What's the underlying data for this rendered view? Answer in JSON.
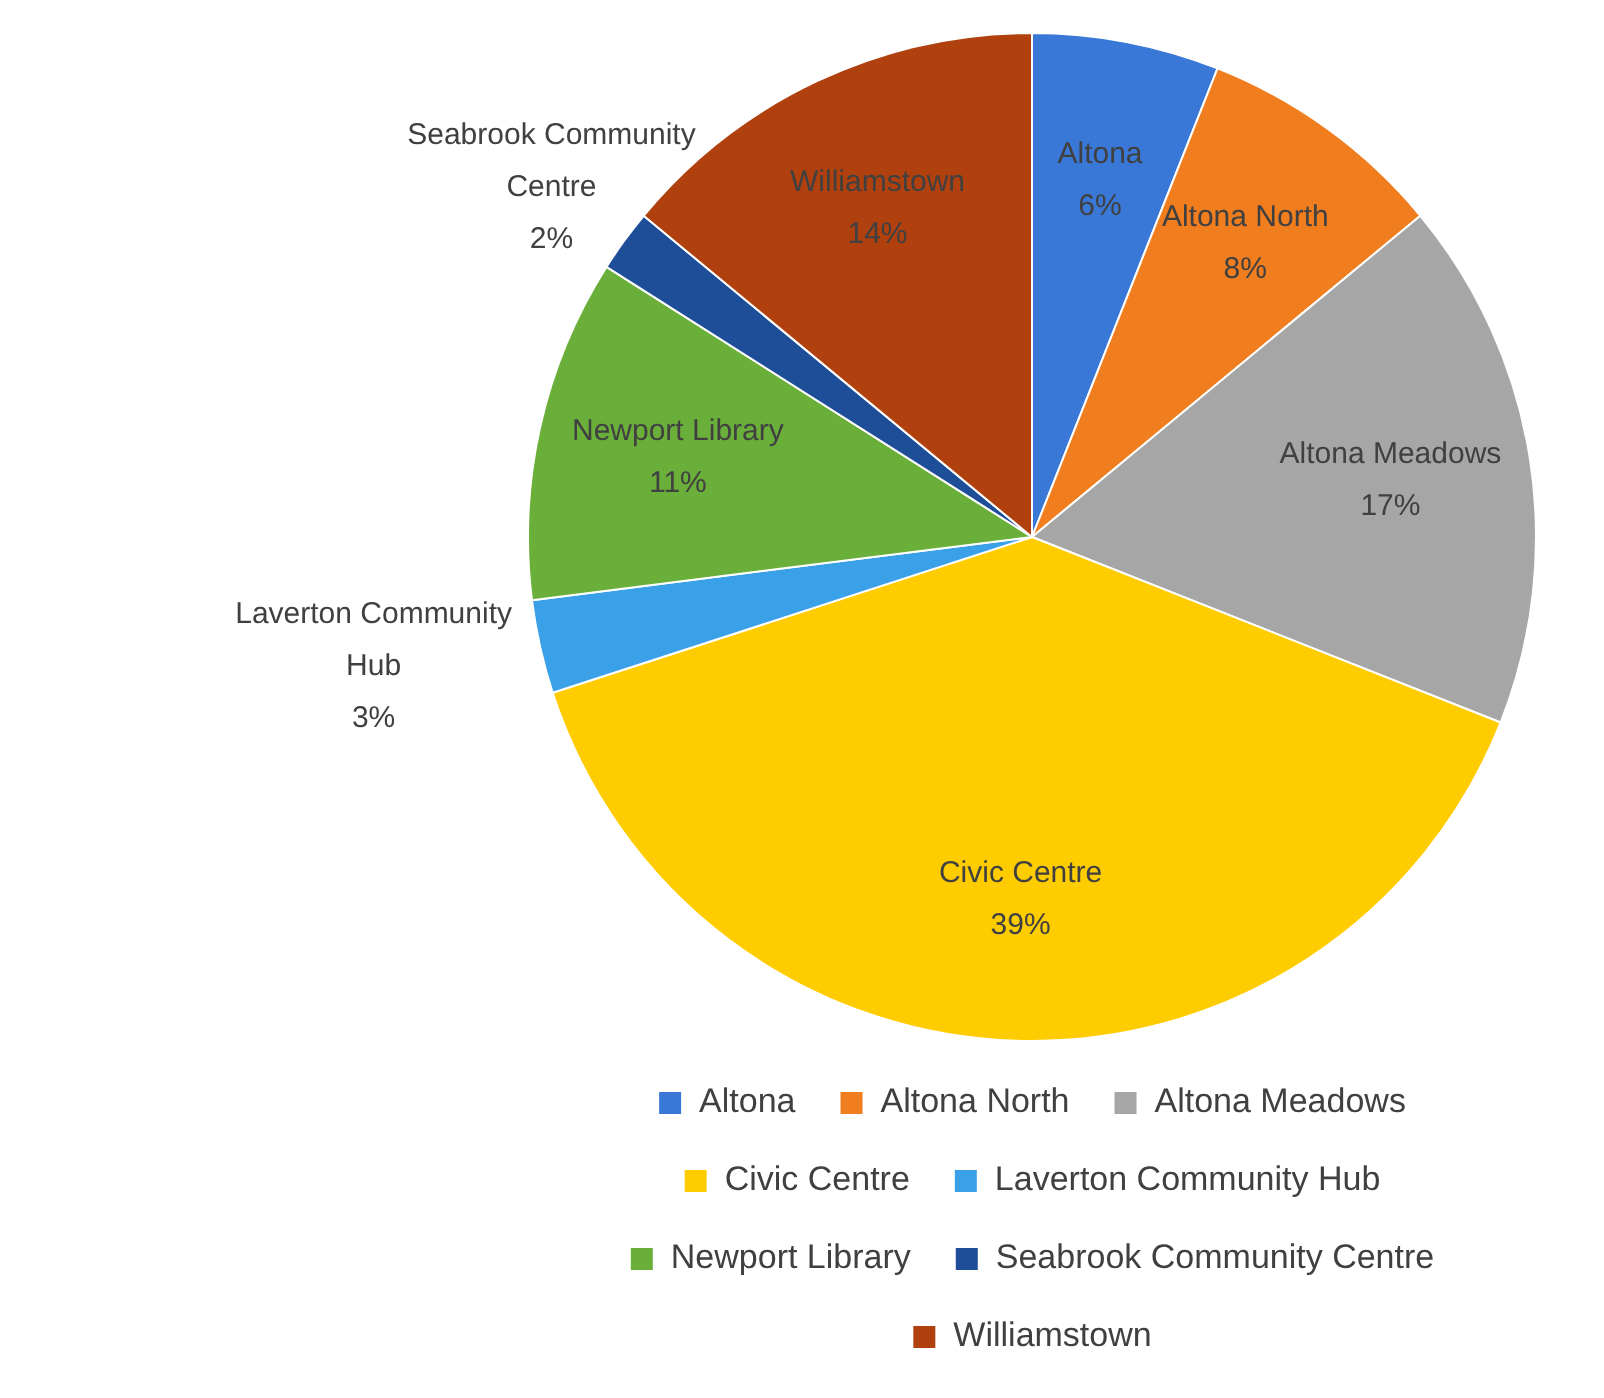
{
  "chart_data": {
    "type": "pie",
    "categories": [
      "Altona",
      "Altona North",
      "Altona Meadows",
      "Civic Centre",
      "Laverton Community Hub",
      "Newport Library",
      "Seabrook Community Centre",
      "Williamstown"
    ],
    "values": [
      6,
      8,
      17,
      39,
      3,
      11,
      2,
      14
    ],
    "value_labels": [
      "6%",
      "8%",
      "17%",
      "39%",
      "3%",
      "11%",
      "2%",
      "14%"
    ],
    "colors": [
      "#3a78d8",
      "#f07d1e",
      "#a6a6a6",
      "#ffcc00",
      "#3aa0e8",
      "#6aaf3a",
      "#1f4e99",
      "#b0400e"
    ],
    "legend": "bottom"
  }
}
